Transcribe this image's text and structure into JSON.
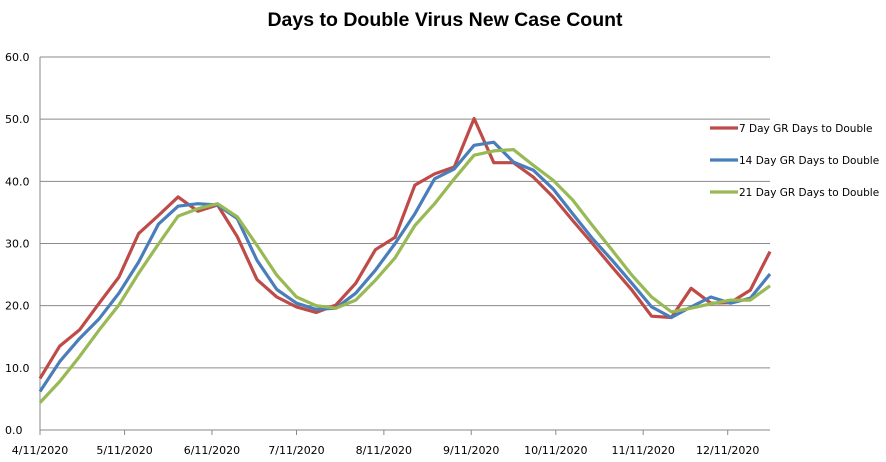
{
  "chart_data": {
    "type": "line",
    "title": "Days to Double Virus New Case Count",
    "xlabel": "",
    "ylabel": "",
    "ylim": [
      0,
      60
    ],
    "yticks": [
      "0.0",
      "10.0",
      "20.0",
      "30.0",
      "40.0",
      "50.0",
      "60.0"
    ],
    "xlim": [
      "2020-04-11",
      "2020-12-26"
    ],
    "xticks": [
      "4/11/2020",
      "5/11/2020",
      "6/11/2020",
      "7/11/2020",
      "8/11/2020",
      "9/11/2020",
      "10/11/2020",
      "11/11/2020",
      "12/11/2020"
    ],
    "grid": "horizontal",
    "legend_position": "right",
    "x": [
      "2020-04-11",
      "2020-04-18",
      "2020-04-25",
      "2020-05-02",
      "2020-05-09",
      "2020-05-16",
      "2020-05-23",
      "2020-05-30",
      "2020-06-06",
      "2020-06-13",
      "2020-06-20",
      "2020-06-27",
      "2020-07-04",
      "2020-07-11",
      "2020-07-18",
      "2020-07-25",
      "2020-08-01",
      "2020-08-08",
      "2020-08-15",
      "2020-08-22",
      "2020-08-29",
      "2020-09-05",
      "2020-09-12",
      "2020-09-19",
      "2020-09-26",
      "2020-10-03",
      "2020-10-10",
      "2020-10-17",
      "2020-10-24",
      "2020-10-31",
      "2020-11-07",
      "2020-11-14",
      "2020-11-21",
      "2020-11-28",
      "2020-12-05",
      "2020-12-12",
      "2020-12-19",
      "2020-12-26"
    ],
    "series": [
      {
        "name": "7 Day GR Days to Double",
        "color": "#be4b48",
        "values": [
          8.3,
          13.5,
          16.1,
          20.4,
          24.6,
          31.6,
          34.5,
          37.5,
          35.2,
          36.2,
          31.1,
          24.2,
          21.4,
          19.8,
          18.9,
          20.1,
          23.6,
          29.0,
          31.0,
          39.4,
          41.2,
          42.3,
          50.1,
          43.0,
          43.0,
          40.7,
          37.5,
          33.7,
          30.0,
          26.2,
          22.5,
          18.3,
          18.1,
          22.8,
          20.4,
          20.5,
          22.5,
          28.7
        ]
      },
      {
        "name": "14 Day GR Days to Double",
        "color": "#4a7ebb",
        "values": [
          6.2,
          11.0,
          14.7,
          17.9,
          22.0,
          27.0,
          33.1,
          36.0,
          36.4,
          36.2,
          34.0,
          27.3,
          22.6,
          20.4,
          19.4,
          19.6,
          22.0,
          25.7,
          30.0,
          34.8,
          40.4,
          42.0,
          45.8,
          46.3,
          43.1,
          41.8,
          38.8,
          34.8,
          30.8,
          27.3,
          23.6,
          19.8,
          18.1,
          19.8,
          21.4,
          20.4,
          21.2,
          25.1
        ]
      },
      {
        "name": "21 Day GR Days to Double",
        "color": "#98b954",
        "values": [
          4.4,
          7.8,
          11.8,
          16.1,
          20.1,
          25.2,
          29.9,
          34.4,
          35.6,
          36.4,
          34.3,
          29.7,
          24.9,
          21.4,
          20.0,
          19.6,
          20.9,
          24.1,
          27.7,
          32.9,
          36.4,
          40.4,
          44.2,
          44.9,
          45.1,
          42.6,
          40.2,
          37.0,
          32.9,
          28.9,
          24.9,
          21.4,
          19.0,
          19.6,
          20.3,
          20.9,
          20.9,
          23.2
        ]
      }
    ]
  }
}
